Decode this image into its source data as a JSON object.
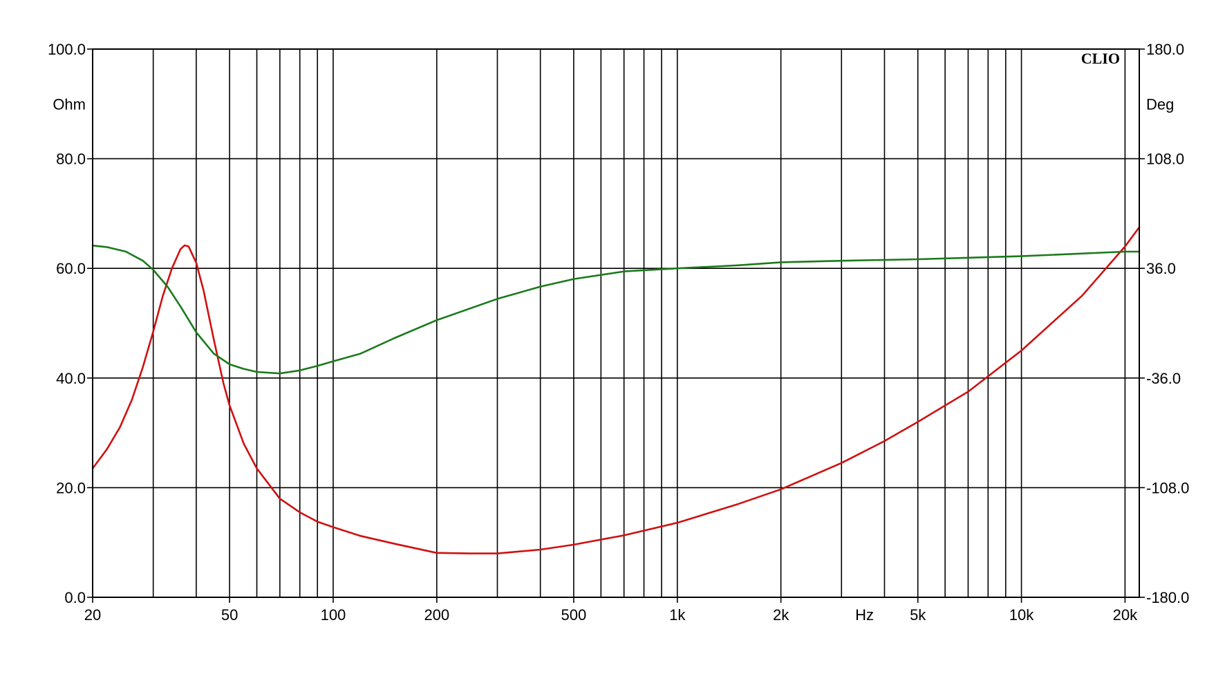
{
  "chart_data": {
    "type": "line",
    "brand": "CLIO",
    "x_scale": "log",
    "xlim": [
      20,
      22000
    ],
    "x_unit": "Hz",
    "x_ticks": [
      {
        "value": 20,
        "label": "20"
      },
      {
        "value": 50,
        "label": "50"
      },
      {
        "value": 100,
        "label": "100"
      },
      {
        "value": 200,
        "label": "200"
      },
      {
        "value": 500,
        "label": "500"
      },
      {
        "value": 1000,
        "label": "1k"
      },
      {
        "value": 2000,
        "label": "2k"
      },
      {
        "value": 5000,
        "label": "5k"
      },
      {
        "value": 10000,
        "label": "10k"
      },
      {
        "value": 20000,
        "label": "20k"
      }
    ],
    "x_unit_position": 3500,
    "x_gridlines": [
      20,
      30,
      40,
      50,
      60,
      70,
      80,
      90,
      100,
      200,
      300,
      400,
      500,
      600,
      700,
      800,
      900,
      1000,
      2000,
      3000,
      4000,
      5000,
      6000,
      7000,
      8000,
      9000,
      10000,
      20000
    ],
    "y_left": {
      "unit": "Ohm",
      "lim": [
        0,
        100
      ],
      "ticks": [
        {
          "value": 0,
          "label": "0.0"
        },
        {
          "value": 20,
          "label": "20.0"
        },
        {
          "value": 40,
          "label": "40.0"
        },
        {
          "value": 60,
          "label": "60.0"
        },
        {
          "value": 80,
          "label": "80.0"
        },
        {
          "value": 100,
          "label": "100.0"
        }
      ]
    },
    "y_right": {
      "unit": "Deg",
      "lim": [
        -180,
        180
      ],
      "ticks": [
        {
          "value": -180,
          "label": "-180.0"
        },
        {
          "value": -108,
          "label": "-108.0"
        },
        {
          "value": -36,
          "label": "-36.0"
        },
        {
          "value": 36,
          "label": "36.0"
        },
        {
          "value": 108,
          "label": "108.0"
        },
        {
          "value": 180,
          "label": "180.0"
        }
      ]
    },
    "grid": true,
    "series": [
      {
        "axis": "left",
        "color": "#d01010",
        "points": [
          [
            20,
            23.5
          ],
          [
            22,
            27
          ],
          [
            24,
            31
          ],
          [
            26,
            36
          ],
          [
            28,
            42
          ],
          [
            30,
            48.5
          ],
          [
            32,
            55
          ],
          [
            34,
            60
          ],
          [
            36,
            63.5
          ],
          [
            37,
            64.2
          ],
          [
            38,
            64
          ],
          [
            40,
            61
          ],
          [
            42,
            56
          ],
          [
            45,
            47
          ],
          [
            48,
            39
          ],
          [
            50,
            35
          ],
          [
            55,
            28
          ],
          [
            60,
            23.5
          ],
          [
            70,
            18
          ],
          [
            80,
            15.5
          ],
          [
            90,
            13.8
          ],
          [
            100,
            12.8
          ],
          [
            120,
            11.2
          ],
          [
            150,
            9.8
          ],
          [
            200,
            8.1
          ],
          [
            250,
            8.0
          ],
          [
            300,
            8.0
          ],
          [
            400,
            8.7
          ],
          [
            500,
            9.6
          ],
          [
            700,
            11.3
          ],
          [
            1000,
            13.6
          ],
          [
            1500,
            17
          ],
          [
            2000,
            19.7
          ],
          [
            3000,
            24.5
          ],
          [
            4000,
            28.5
          ],
          [
            5000,
            32
          ],
          [
            7000,
            37.5
          ],
          [
            10000,
            45
          ],
          [
            15000,
            55
          ],
          [
            20000,
            64
          ],
          [
            22000,
            67.5
          ]
        ]
      },
      {
        "axis": "right",
        "color": "#1a7a1a",
        "points": [
          [
            20,
            51
          ],
          [
            22,
            50
          ],
          [
            25,
            47
          ],
          [
            28,
            41
          ],
          [
            30,
            35
          ],
          [
            33,
            24
          ],
          [
            36,
            11
          ],
          [
            40,
            -6
          ],
          [
            45,
            -20
          ],
          [
            50,
            -27
          ],
          [
            55,
            -30
          ],
          [
            60,
            -32
          ],
          [
            70,
            -33
          ],
          [
            80,
            -31
          ],
          [
            90,
            -28
          ],
          [
            100,
            -25
          ],
          [
            120,
            -20
          ],
          [
            150,
            -10
          ],
          [
            200,
            2
          ],
          [
            300,
            16
          ],
          [
            400,
            24
          ],
          [
            500,
            29
          ],
          [
            700,
            34
          ],
          [
            1000,
            36
          ],
          [
            1500,
            38
          ],
          [
            2000,
            40
          ],
          [
            3000,
            41
          ],
          [
            5000,
            42
          ],
          [
            10000,
            44
          ],
          [
            20000,
            47
          ],
          [
            22000,
            47
          ]
        ]
      }
    ]
  }
}
